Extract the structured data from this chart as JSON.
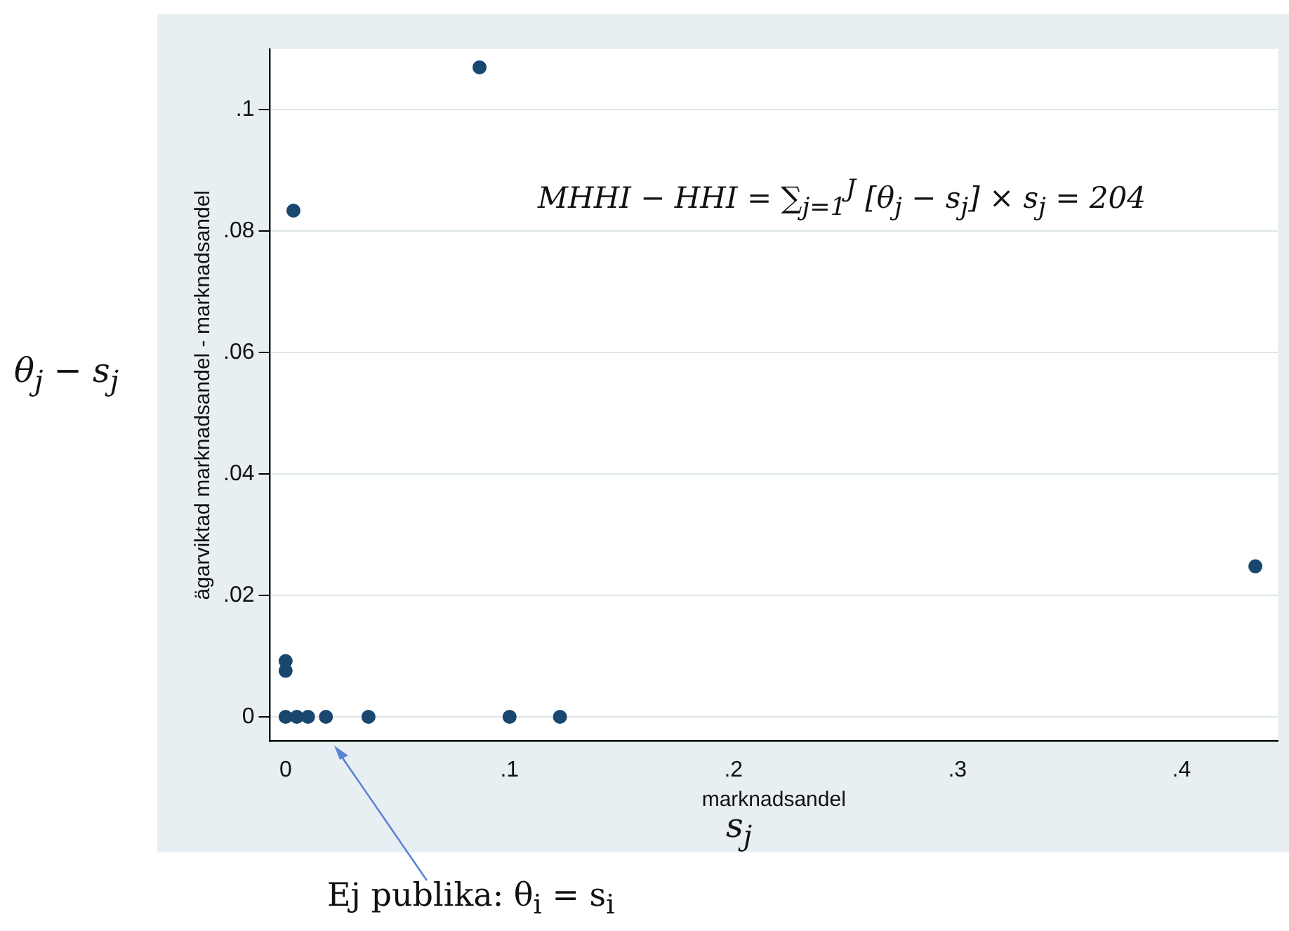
{
  "chart_data": {
    "type": "scatter",
    "xlabel": "marknadsandel",
    "ylabel": "ägarviktad marknadsandel - marknadsandel",
    "x": [
      0.433,
      0.0866,
      0.0035,
      0.1225,
      0.1,
      0.037,
      0,
      0,
      0,
      0.005,
      0.01,
      0.018
    ],
    "series": [
      {
        "color": "#1a476f",
        "values": [
          0.0248,
          0.107,
          0.0834,
          0,
          0,
          0,
          0.0092,
          0.0076,
          0,
          0,
          0,
          0
        ]
      }
    ],
    "xlim": [
      -0.007,
      0.443
    ],
    "xticks": [
      0,
      {
        "value": 0.1,
        "label": ".1"
      },
      {
        "value": 0.2,
        "label": ".2"
      },
      {
        "value": 0.3,
        "label": ".3"
      },
      {
        "value": 0.4,
        "label": ".4"
      }
    ],
    "ylim": [
      -0.004,
      0.11
    ],
    "yticks": [
      0,
      {
        "value": 0.02,
        "label": ".02"
      },
      {
        "value": 0.04,
        "label": ".04"
      },
      {
        "value": 0.06,
        "label": ".06"
      },
      {
        "value": 0.08,
        "label": ".08"
      },
      {
        "value": 0.1,
        "label": ".1"
      }
    ],
    "grid": "y",
    "legend": false,
    "marker": "circle",
    "annotations": [
      "θ$_{j}$ − s$_{j}$",
      "s$_{j}$",
      "MHHI − HHI = ∑$_{j=1}$$^{J}$ [θ$_{j}$ − s$_{j}$] × s$_{j}$ = 204",
      "Ej publika: θ$_{i}$ = s$_{i}$"
    ]
  }
}
